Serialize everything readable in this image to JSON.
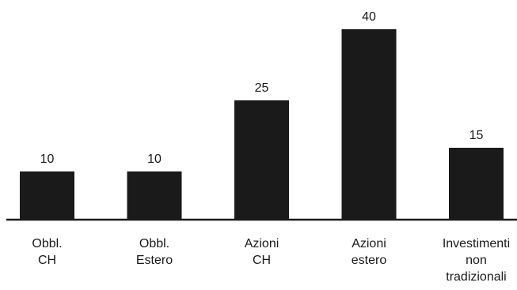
{
  "chart_data": {
    "type": "bar",
    "categories": [
      [
        "Obbl.",
        "CH"
      ],
      [
        "Obbl.",
        "Estero"
      ],
      [
        "Azioni",
        "CH"
      ],
      [
        "Azioni",
        "estero"
      ],
      [
        "Investimenti",
        "non",
        "tradizionali"
      ]
    ],
    "values": [
      10,
      10,
      25,
      40,
      15
    ],
    "data_labels": [
      "10",
      "10",
      "25",
      "40",
      "15"
    ],
    "title": "",
    "xlabel": "",
    "ylabel": "",
    "ylim": [
      0,
      40
    ],
    "grid": false,
    "legend": "none",
    "colors": {
      "bar": "#1a1a1a",
      "axis": "#1a1a1a",
      "text": "#1a1a1a",
      "background": "#ffffff"
    }
  }
}
